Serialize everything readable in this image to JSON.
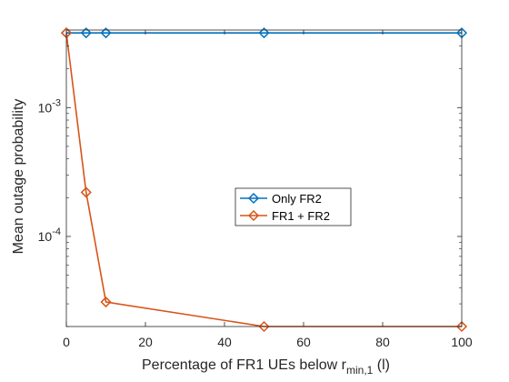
{
  "chart_data": {
    "type": "line",
    "title": "",
    "xlabel": {
      "text": "Percentage of FR1 UEs below r",
      "subscript": "min,1",
      "suffix": " (l)"
    },
    "ylabel": "Mean outage probability",
    "xlim": [
      0,
      100
    ],
    "ylim": [
      2e-05,
      0.004
    ],
    "yscale": "log",
    "grid": false,
    "legend_position": "center-right",
    "x_ticks": [
      0,
      20,
      40,
      60,
      80,
      100
    ],
    "x_tick_labels": [
      "0",
      "20",
      "40",
      "60",
      "80",
      "100"
    ],
    "y_ticks": [
      0.0001,
      0.001
    ],
    "y_tick_labels": [
      {
        "base": "10",
        "exp": "-4"
      },
      {
        "base": "10",
        "exp": "-3"
      }
    ],
    "x": [
      0,
      5,
      10,
      50,
      100
    ],
    "series": [
      {
        "name": "Only FR2",
        "color": "#0072BD",
        "marker": "diamond",
        "values": [
          0.0038,
          0.0038,
          0.0038,
          0.0038,
          0.0038
        ]
      },
      {
        "name": "FR1 + FR2",
        "color": "#D95319",
        "marker": "diamond",
        "values": [
          0.0038,
          0.00022,
          3.1e-05,
          2e-05,
          2e-05
        ]
      }
    ]
  }
}
